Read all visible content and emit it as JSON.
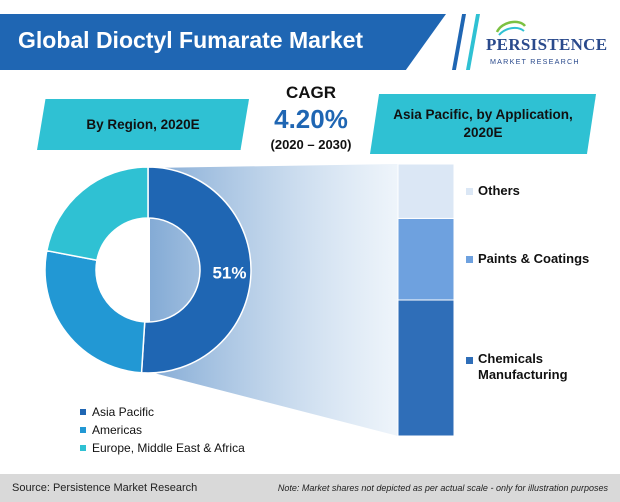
{
  "header": {
    "title": "Global Dioctyl Fumarate Market",
    "logo_name": "PERSISTENCE",
    "logo_sub": "MARKET RESEARCH"
  },
  "boxes": {
    "region": "By Region, 2020E",
    "application": "Asia Pacific, by Application, 2020E"
  },
  "cagr": {
    "label": "CAGR",
    "value": "4.20%",
    "period": "(2020 – 2030)"
  },
  "chart_data": [
    {
      "type": "pie",
      "variant": "donut",
      "title": "By Region, 2020E",
      "categories": [
        "Asia Pacific",
        "Americas",
        "Europe, Middle East & Africa"
      ],
      "values": [
        51,
        27,
        22
      ],
      "colors": [
        "#1f66b3",
        "#2298d4",
        "#2fc1d3"
      ],
      "data_labels": [
        "51%",
        "",
        ""
      ],
      "legend_position": "bottom-left"
    },
    {
      "type": "bar",
      "variant": "100% stacked",
      "title": "Asia Pacific, by Application, 2020E",
      "categories": [
        "Chemicals Manufacturing",
        "Paints & Coatings",
        "Others"
      ],
      "values": [
        50,
        30,
        20
      ],
      "colors": [
        "#2f6eb8",
        "#6ea1df",
        "#dbe7f5"
      ],
      "legend_position": "right"
    }
  ],
  "legend": {
    "items": [
      {
        "label": "Asia Pacific",
        "color": "#1f66b3"
      },
      {
        "label": "Americas",
        "color": "#2298d4"
      },
      {
        "label": "Europe, Middle East & Africa",
        "color": "#2fc1d3"
      }
    ]
  },
  "footer": {
    "source": "Source: Persistence Market Research",
    "note": "Note: Market shares not depicted as per actual scale - only for illustration purposes"
  }
}
